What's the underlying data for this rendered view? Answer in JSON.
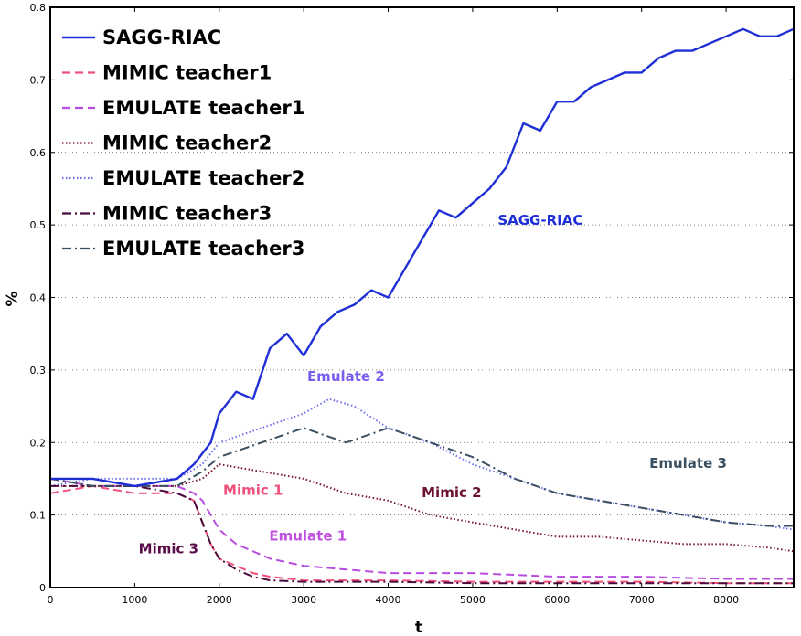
{
  "chart_data": {
    "type": "line",
    "xlabel": "t",
    "ylabel": "%",
    "xlim": [
      0,
      8800
    ],
    "ylim": [
      0,
      0.8
    ],
    "x_ticks": [
      0,
      1000,
      2000,
      3000,
      4000,
      5000,
      6000,
      7000,
      8000
    ],
    "y_ticks": [
      0,
      0.1,
      0.2,
      0.3,
      0.4,
      0.5,
      0.6,
      0.7,
      0.8
    ],
    "grid": "horizontal dotted",
    "legend_position": "top-left",
    "series": [
      {
        "name": "SAGG-RIAC",
        "color": "#1f2fd6",
        "dash": "solid",
        "x": [
          0,
          500,
          1000,
          1500,
          1700,
          1900,
          2000,
          2200,
          2400,
          2600,
          2800,
          3000,
          3200,
          3400,
          3600,
          3800,
          4000,
          4200,
          4400,
          4600,
          4800,
          5000,
          5200,
          5400,
          5600,
          5800,
          6000,
          6200,
          6400,
          6600,
          6800,
          7000,
          7200,
          7400,
          7600,
          7800,
          8000,
          8200,
          8400,
          8600,
          8800
        ],
        "y": [
          0.15,
          0.15,
          0.14,
          0.15,
          0.17,
          0.2,
          0.24,
          0.27,
          0.26,
          0.33,
          0.35,
          0.32,
          0.36,
          0.38,
          0.39,
          0.41,
          0.4,
          0.44,
          0.48,
          0.52,
          0.51,
          0.53,
          0.55,
          0.58,
          0.64,
          0.63,
          0.67,
          0.67,
          0.69,
          0.7,
          0.71,
          0.71,
          0.73,
          0.74,
          0.74,
          0.75,
          0.76,
          0.77,
          0.76,
          0.76,
          0.77
        ]
      },
      {
        "name": "MIMIC teacher1",
        "color": "#f0507c",
        "dash": "dashed",
        "x": [
          0,
          500,
          1000,
          1500,
          1700,
          1800,
          1900,
          2000,
          2200,
          2400,
          2600,
          3000,
          3500,
          4000,
          5000,
          6000,
          7000,
          8000,
          8800
        ],
        "y": [
          0.13,
          0.14,
          0.13,
          0.13,
          0.12,
          0.09,
          0.06,
          0.04,
          0.03,
          0.02,
          0.015,
          0.01,
          0.01,
          0.01,
          0.008,
          0.008,
          0.008,
          0.006,
          0.006
        ]
      },
      {
        "name": "EMULATE teacher1",
        "color": "#b84ce0",
        "dash": "dashed",
        "x": [
          0,
          500,
          1000,
          1500,
          1700,
          1800,
          1900,
          2000,
          2200,
          2400,
          2600,
          3000,
          3500,
          4000,
          5000,
          6000,
          7000,
          8000,
          8800
        ],
        "y": [
          0.15,
          0.14,
          0.14,
          0.14,
          0.13,
          0.12,
          0.1,
          0.08,
          0.06,
          0.05,
          0.04,
          0.03,
          0.025,
          0.02,
          0.02,
          0.015,
          0.015,
          0.012,
          0.012
        ]
      },
      {
        "name": "MIMIC teacher2",
        "color": "#7a1430",
        "dash": "dotted",
        "x": [
          0,
          500,
          1000,
          1500,
          1800,
          2000,
          2500,
          3000,
          3500,
          4000,
          4500,
          5000,
          5500,
          6000,
          6500,
          7000,
          7500,
          8000,
          8500,
          8800
        ],
        "y": [
          0.14,
          0.14,
          0.14,
          0.14,
          0.15,
          0.17,
          0.16,
          0.15,
          0.13,
          0.12,
          0.1,
          0.09,
          0.08,
          0.07,
          0.07,
          0.065,
          0.06,
          0.06,
          0.055,
          0.05
        ]
      },
      {
        "name": "EMULATE teacher2",
        "color": "#6f6ff0",
        "dash": "dotted",
        "x": [
          0,
          500,
          1000,
          1500,
          1800,
          2000,
          2500,
          3000,
          3300,
          3600,
          4000,
          4500,
          5000,
          5500,
          6000,
          6500,
          7000,
          7500,
          8000,
          8500,
          8800
        ],
        "y": [
          0.14,
          0.15,
          0.15,
          0.15,
          0.17,
          0.2,
          0.22,
          0.24,
          0.26,
          0.25,
          0.22,
          0.2,
          0.17,
          0.15,
          0.13,
          0.12,
          0.11,
          0.1,
          0.09,
          0.085,
          0.08
        ]
      },
      {
        "name": "MIMIC teacher3",
        "color": "#4a0a3c",
        "dash": "dashdot",
        "x": [
          0,
          500,
          1000,
          1500,
          1700,
          1800,
          1900,
          2000,
          2200,
          2400,
          2600,
          3000,
          3500,
          4000,
          5000,
          6000,
          7000,
          8000,
          8800
        ],
        "y": [
          0.14,
          0.14,
          0.14,
          0.13,
          0.12,
          0.09,
          0.06,
          0.04,
          0.025,
          0.015,
          0.01,
          0.008,
          0.008,
          0.008,
          0.006,
          0.006,
          0.006,
          0.006,
          0.006
        ]
      },
      {
        "name": "EMULATE teacher3",
        "color": "#3a5060",
        "dash": "dashdot",
        "x": [
          0,
          500,
          1000,
          1500,
          1800,
          2000,
          2500,
          3000,
          3500,
          4000,
          4500,
          5000,
          5500,
          6000,
          6500,
          7000,
          7500,
          8000,
          8500,
          8800
        ],
        "y": [
          0.15,
          0.14,
          0.14,
          0.14,
          0.16,
          0.18,
          0.2,
          0.22,
          0.2,
          0.22,
          0.2,
          0.18,
          0.15,
          0.13,
          0.12,
          0.11,
          0.1,
          0.09,
          0.085,
          0.085
        ]
      }
    ],
    "annotations": [
      {
        "text": "SAGG-RIAC",
        "x": 5800,
        "y": 0.5,
        "color": "#1f2fd6"
      },
      {
        "text": "Emulate 2",
        "x": 3500,
        "y": 0.285,
        "color": "#7b5cf0"
      },
      {
        "text": "Emulate 3",
        "x": 7550,
        "y": 0.165,
        "color": "#3a5060"
      },
      {
        "text": "Mimic 1",
        "x": 2400,
        "y": 0.128,
        "color": "#f0507c"
      },
      {
        "text": "Mimic 2",
        "x": 4750,
        "y": 0.125,
        "color": "#6a1030"
      },
      {
        "text": "Emulate 1",
        "x": 3050,
        "y": 0.065,
        "color": "#c050e0"
      },
      {
        "text": "Mimic 3",
        "x": 1400,
        "y": 0.047,
        "color": "#5a0c48"
      }
    ]
  }
}
